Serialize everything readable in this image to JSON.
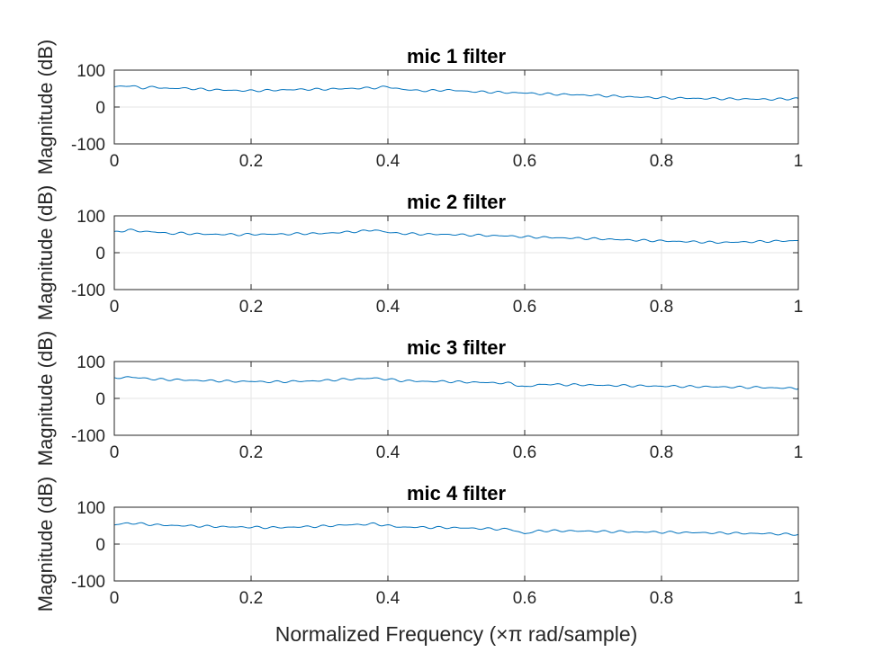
{
  "chart_data": [
    {
      "type": "line",
      "title": "mic 1 filter",
      "ylabel": "Magnitude (dB)",
      "xlim": [
        0,
        1
      ],
      "ylim": [
        -100,
        100
      ],
      "xticks": [
        "0",
        "0.2",
        "0.4",
        "0.6",
        "0.8",
        "1"
      ],
      "yticks": [
        "100",
        "0",
        "-100"
      ],
      "grid": true,
      "series_color": "#0072BD",
      "x": [
        0,
        0.02,
        0.04,
        0.06,
        0.08,
        0.1,
        0.12,
        0.14,
        0.16,
        0.18,
        0.2,
        0.22,
        0.24,
        0.26,
        0.28,
        0.3,
        0.32,
        0.34,
        0.36,
        0.38,
        0.4,
        0.42,
        0.44,
        0.46,
        0.48,
        0.5,
        0.52,
        0.54,
        0.56,
        0.58,
        0.6,
        0.62,
        0.64,
        0.66,
        0.68,
        0.7,
        0.72,
        0.74,
        0.76,
        0.78,
        0.8,
        0.82,
        0.84,
        0.86,
        0.88,
        0.9,
        0.92,
        0.94,
        0.96,
        0.98,
        1
      ],
      "y": [
        55,
        58,
        52,
        54,
        50,
        51,
        49,
        47,
        46,
        45,
        44,
        45,
        46,
        47,
        48,
        48,
        49,
        50,
        51,
        52,
        55,
        48,
        45,
        44,
        46,
        45,
        42,
        41,
        40,
        39,
        38,
        36,
        35,
        34,
        33,
        32,
        30,
        29,
        27,
        26,
        25,
        24,
        24,
        23,
        23,
        22,
        22,
        21,
        21,
        22,
        23
      ]
    },
    {
      "type": "line",
      "title": "mic 2 filter",
      "ylabel": "Magnitude (dB)",
      "xlim": [
        0,
        1
      ],
      "ylim": [
        -100,
        100
      ],
      "xticks": [
        "0",
        "0.2",
        "0.4",
        "0.6",
        "0.8",
        "1"
      ],
      "yticks": [
        "100",
        "0",
        "-100"
      ],
      "grid": true,
      "series_color": "#0072BD",
      "x": [
        0,
        0.02,
        0.04,
        0.06,
        0.08,
        0.1,
        0.12,
        0.14,
        0.16,
        0.18,
        0.2,
        0.22,
        0.24,
        0.26,
        0.28,
        0.3,
        0.32,
        0.34,
        0.36,
        0.38,
        0.4,
        0.42,
        0.44,
        0.46,
        0.48,
        0.5,
        0.52,
        0.54,
        0.56,
        0.58,
        0.6,
        0.62,
        0.64,
        0.66,
        0.68,
        0.7,
        0.72,
        0.74,
        0.76,
        0.78,
        0.8,
        0.82,
        0.84,
        0.86,
        0.88,
        0.9,
        0.92,
        0.94,
        0.96,
        0.98,
        1
      ],
      "y": [
        55,
        62,
        58,
        56,
        52,
        53,
        51,
        50,
        50,
        49,
        50,
        50,
        50,
        51,
        52,
        52,
        54,
        56,
        58,
        62,
        55,
        52,
        51,
        50,
        50,
        49,
        48,
        47,
        46,
        45,
        43,
        42,
        41,
        40,
        39,
        38,
        37,
        35,
        34,
        33,
        32,
        31,
        30,
        29,
        28,
        28,
        29,
        30,
        31,
        32,
        33
      ]
    },
    {
      "type": "line",
      "title": "mic 3 filter",
      "ylabel": "Magnitude (dB)",
      "xlim": [
        0,
        1
      ],
      "ylim": [
        -100,
        100
      ],
      "xticks": [
        "0",
        "0.2",
        "0.4",
        "0.6",
        "0.8",
        "1"
      ],
      "yticks": [
        "100",
        "0",
        "-100"
      ],
      "grid": true,
      "series_color": "#0072BD",
      "x": [
        0,
        0.02,
        0.04,
        0.06,
        0.08,
        0.1,
        0.12,
        0.14,
        0.16,
        0.18,
        0.2,
        0.22,
        0.24,
        0.26,
        0.28,
        0.3,
        0.32,
        0.34,
        0.36,
        0.38,
        0.4,
        0.42,
        0.44,
        0.46,
        0.48,
        0.5,
        0.52,
        0.54,
        0.56,
        0.58,
        0.6,
        0.62,
        0.64,
        0.66,
        0.68,
        0.7,
        0.72,
        0.74,
        0.76,
        0.78,
        0.8,
        0.82,
        0.84,
        0.86,
        0.88,
        0.9,
        0.92,
        0.94,
        0.96,
        0.98,
        1
      ],
      "y": [
        55,
        58,
        55,
        52,
        51,
        50,
        49,
        48,
        47,
        46,
        46,
        45,
        45,
        46,
        47,
        48,
        50,
        52,
        53,
        55,
        52,
        48,
        47,
        46,
        46,
        45,
        44,
        43,
        42,
        41,
        30,
        38,
        38,
        37,
        37,
        36,
        35,
        35,
        34,
        34,
        33,
        33,
        32,
        32,
        31,
        31,
        30,
        30,
        29,
        28,
        27
      ]
    },
    {
      "type": "line",
      "title": "mic 4 filter",
      "ylabel": "Magnitude (dB)",
      "xlabel": "Normalized Frequency (×π rad/sample)",
      "xlim": [
        0,
        1
      ],
      "ylim": [
        -100,
        100
      ],
      "xticks": [
        "0",
        "0.2",
        "0.4",
        "0.6",
        "0.8",
        "1"
      ],
      "yticks": [
        "100",
        "0",
        "-100"
      ],
      "grid": true,
      "series_color": "#0072BD",
      "x": [
        0,
        0.02,
        0.04,
        0.06,
        0.08,
        0.1,
        0.12,
        0.14,
        0.16,
        0.18,
        0.2,
        0.22,
        0.24,
        0.26,
        0.28,
        0.3,
        0.32,
        0.34,
        0.36,
        0.38,
        0.4,
        0.42,
        0.44,
        0.46,
        0.48,
        0.5,
        0.52,
        0.54,
        0.56,
        0.58,
        0.6,
        0.62,
        0.64,
        0.66,
        0.68,
        0.7,
        0.72,
        0.74,
        0.76,
        0.78,
        0.8,
        0.82,
        0.84,
        0.86,
        0.88,
        0.9,
        0.92,
        0.94,
        0.96,
        0.98,
        1
      ],
      "y": [
        52,
        57,
        55,
        52,
        51,
        50,
        49,
        48,
        47,
        46,
        46,
        45,
        45,
        46,
        47,
        48,
        50,
        52,
        53,
        55,
        50,
        46,
        46,
        45,
        45,
        44,
        43,
        42,
        41,
        40,
        28,
        36,
        36,
        36,
        35,
        35,
        34,
        34,
        33,
        33,
        32,
        32,
        31,
        31,
        30,
        30,
        29,
        29,
        28,
        27,
        26
      ]
    }
  ]
}
